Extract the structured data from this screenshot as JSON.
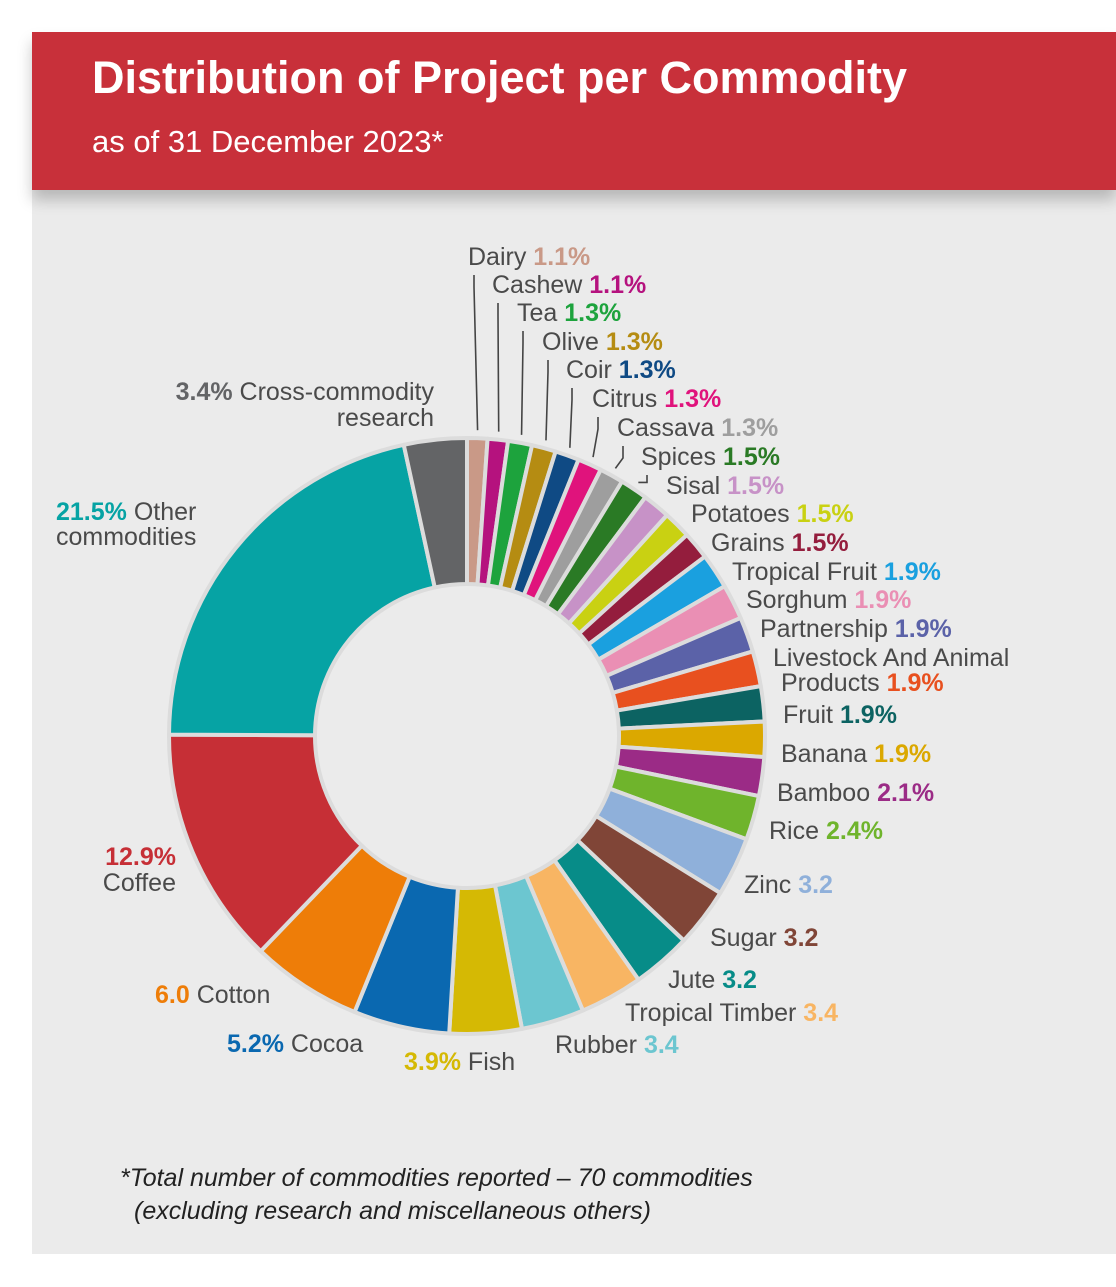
{
  "header": {
    "title": "Distribution of Project per Commodity",
    "subtitle": "as of 31 December 2023*"
  },
  "footnote": {
    "line1": "*Total number of commodities reported – 70 commodities",
    "line2": "(excluding research and miscellaneous others)"
  },
  "colors": {
    "banner": "#c8303a",
    "panel": "#ebebeb"
  },
  "chart_data": {
    "type": "pie",
    "style": "donut",
    "start_angle_deg": 0,
    "direction": "clockwise",
    "legend": "none",
    "slices": [
      {
        "name": "Dairy",
        "value": 1.1,
        "label": "1.1%",
        "color": "#c99987",
        "order": "name-first"
      },
      {
        "name": "Cashew",
        "value": 1.1,
        "label": "1.1%",
        "color": "#b5127e",
        "order": "name-first"
      },
      {
        "name": "Tea",
        "value": 1.3,
        "label": "1.3%",
        "color": "#1da33d",
        "order": "name-first"
      },
      {
        "name": "Olive",
        "value": 1.3,
        "label": "1.3%",
        "color": "#b58c12",
        "order": "name-first"
      },
      {
        "name": "Coir",
        "value": 1.3,
        "label": "1.3%",
        "color": "#0f4a84",
        "order": "name-first"
      },
      {
        "name": "Citrus",
        "value": 1.3,
        "label": "1.3%",
        "color": "#e0137c",
        "order": "name-first"
      },
      {
        "name": "Cassava",
        "value": 1.3,
        "label": "1.3%",
        "color": "#9e9e9e",
        "order": "name-first"
      },
      {
        "name": "Spices",
        "value": 1.5,
        "label": "1.5%",
        "color": "#2a7a25",
        "order": "name-first"
      },
      {
        "name": "Sisal",
        "value": 1.5,
        "label": "1.5%",
        "color": "#c792c7",
        "order": "name-first"
      },
      {
        "name": "Potatoes",
        "value": 1.5,
        "label": "1.5%",
        "color": "#c9d112",
        "order": "name-first"
      },
      {
        "name": "Grains",
        "value": 1.5,
        "label": "1.5%",
        "color": "#941d3d",
        "order": "name-first"
      },
      {
        "name": "Tropical Fruit",
        "value": 1.9,
        "label": "1.9%",
        "color": "#1aa0df",
        "order": "name-first"
      },
      {
        "name": "Sorghum",
        "value": 1.9,
        "label": "1.9%",
        "color": "#ea8fb4",
        "order": "name-first"
      },
      {
        "name": "Partnership",
        "value": 1.9,
        "label": "1.9%",
        "color": "#5b62a8",
        "order": "name-first"
      },
      {
        "name": "Livestock And Animal Products",
        "name_lines": [
          "Livestock And Animal",
          "Products"
        ],
        "value": 1.9,
        "label": "1.9%",
        "color": "#e8501f",
        "order": "name-first"
      },
      {
        "name": "Fruit",
        "value": 1.9,
        "label": "1.9%",
        "color": "#0c6362",
        "order": "name-first"
      },
      {
        "name": "Banana",
        "value": 1.9,
        "label": "1.9%",
        "color": "#dba800",
        "order": "name-first"
      },
      {
        "name": "Bamboo",
        "value": 2.1,
        "label": "2.1%",
        "color": "#9b2b86",
        "order": "name-first"
      },
      {
        "name": "Rice",
        "value": 2.4,
        "label": "2.4%",
        "color": "#6fb42c",
        "order": "name-first"
      },
      {
        "name": "Zinc",
        "value": 3.2,
        "label": "3.2",
        "color": "#8fb0da",
        "order": "name-first"
      },
      {
        "name": "Sugar",
        "value": 3.2,
        "label": "3.2",
        "color": "#804537",
        "order": "name-first"
      },
      {
        "name": "Jute",
        "value": 3.2,
        "label": "3.2",
        "color": "#078c88",
        "order": "name-first"
      },
      {
        "name": "Tropical Timber",
        "value": 3.4,
        "label": "3.4",
        "color": "#f8b563",
        "order": "name-first"
      },
      {
        "name": "Rubber",
        "value": 3.4,
        "label": "3.4",
        "color": "#6cc6d0",
        "order": "name-first"
      },
      {
        "name": "Fish",
        "value": 3.9,
        "label": "3.9%",
        "color": "#d5b904",
        "order": "value-first"
      },
      {
        "name": "Cocoa",
        "value": 5.2,
        "label": "5.2%",
        "color": "#0a68b0",
        "order": "value-first"
      },
      {
        "name": "Cotton",
        "value": 6.0,
        "label": "6.0",
        "color": "#ee7d08",
        "order": "value-first"
      },
      {
        "name": "Coffee",
        "value": 12.9,
        "label": "12.9%",
        "color": "#c62f36",
        "order": "value-above"
      },
      {
        "name": "Other commodities",
        "name_lines": [
          "Other",
          "commodities"
        ],
        "value": 21.5,
        "label": "21.5%",
        "color": "#06a3a4",
        "order": "value-first"
      },
      {
        "name": "Cross-commodity research",
        "name_lines": [
          "Cross-commodity",
          "research"
        ],
        "value": 3.4,
        "label": "3.4%",
        "color": "#636466",
        "order": "value-first"
      }
    ]
  }
}
